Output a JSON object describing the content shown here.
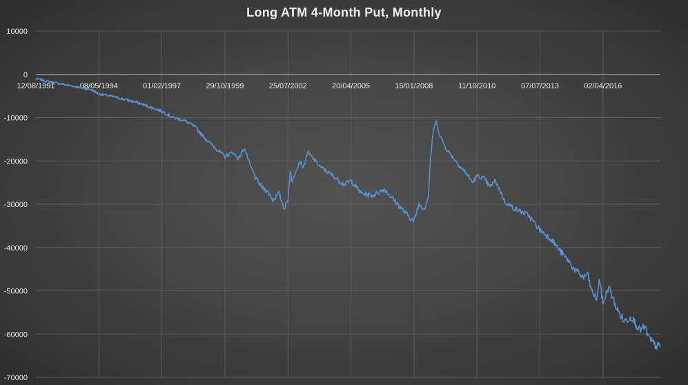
{
  "chart_data": {
    "type": "line",
    "title": "Long ATM 4-Month Put, Monthly",
    "xlabel": "",
    "ylabel": "",
    "ylim": [
      -70000,
      10000
    ],
    "y_ticks": [
      10000,
      0,
      -10000,
      -20000,
      -30000,
      -40000,
      -50000,
      -60000,
      -70000
    ],
    "y_tick_labels": [
      "10000",
      "0",
      "-10000",
      "-20000",
      "-30000",
      "-40000",
      "-50000",
      "-60000",
      "-70000"
    ],
    "x_tick_labels": [
      "12/08/1991",
      "08/05/1994",
      "01/02/1997",
      "29/10/1999",
      "25/07/2002",
      "20/04/2005",
      "15/01/2008",
      "11/10/2010",
      "07/07/2013",
      "02/04/2016"
    ],
    "xlim": [
      "12/08/1991",
      "30/09/2018"
    ],
    "grid": true,
    "legend": "none",
    "series_color": "#5b8fd0",
    "series": [
      {
        "x": [
          "12/08/1991",
          "01/01/1992",
          "01/01/1993",
          "01/01/1994",
          "08/05/1994",
          "01/01/1995",
          "01/01/1996",
          "01/02/1997",
          "01/08/1997",
          "01/01/1998",
          "01/07/1998",
          "01/10/1998",
          "01/01/1999",
          "01/06/1999",
          "29/10/1999",
          "01/03/2000",
          "01/06/2000",
          "01/09/2000",
          "01/12/2000",
          "01/03/2001",
          "01/06/2001",
          "01/09/2001",
          "01/12/2001",
          "01/03/2002",
          "01/06/2002",
          "25/07/2002",
          "01/09/2002",
          "01/10/2002",
          "01/12/2002",
          "01/02/2003",
          "01/04/2003",
          "01/06/2003",
          "01/01/2004",
          "01/06/2004",
          "01/01/2005",
          "20/04/2005",
          "01/10/2005",
          "01/04/2006",
          "01/10/2006",
          "01/02/2007",
          "01/06/2007",
          "01/09/2007",
          "15/01/2008",
          "01/04/2008",
          "01/07/2008",
          "01/09/2008",
          "01/10/2008",
          "01/11/2008",
          "01/12/2008",
          "01/01/2009",
          "01/03/2009",
          "01/06/2009",
          "01/01/2010",
          "01/05/2010",
          "01/08/2010",
          "11/10/2010",
          "01/02/2011",
          "01/05/2011",
          "01/08/2011",
          "01/10/2011",
          "01/01/2012",
          "01/06/2012",
          "01/01/2013",
          "07/07/2013",
          "01/01/2014",
          "01/06/2014",
          "01/10/2014",
          "01/01/2015",
          "01/06/2015",
          "01/08/2015",
          "01/10/2015",
          "01/01/2016",
          "01/02/2016",
          "02/04/2016",
          "01/07/2016",
          "01/11/2016",
          "01/03/2017",
          "01/07/2017",
          "01/11/2017",
          "01/02/2018",
          "01/04/2018",
          "01/07/2018",
          "30/09/2018"
        ],
        "y": [
          -1000,
          -1500,
          -2500,
          -3500,
          -4500,
          -5200,
          -6500,
          -8500,
          -10000,
          -10500,
          -12000,
          -13500,
          -15000,
          -17000,
          -19000,
          -18000,
          -19500,
          -17000,
          -21000,
          -24000,
          -26000,
          -27000,
          -29000,
          -27500,
          -31000,
          -29000,
          -22000,
          -25000,
          -22000,
          -20000,
          -21500,
          -18000,
          -21500,
          -23000,
          -25500,
          -24500,
          -27500,
          -28000,
          -26500,
          -28500,
          -30500,
          -32000,
          -34000,
          -30000,
          -31000,
          -28000,
          -20000,
          -15000,
          -12000,
          -11000,
          -14000,
          -17000,
          -21000,
          -23000,
          -25000,
          -23500,
          -24000,
          -26000,
          -24500,
          -26500,
          -29500,
          -31000,
          -32500,
          -36000,
          -38000,
          -41000,
          -43000,
          -45000,
          -47000,
          -46000,
          -50000,
          -52000,
          -47000,
          -53000,
          -49000,
          -54000,
          -57000,
          -56000,
          -59000,
          -58500,
          -61000,
          -62500,
          -63000
        ]
      }
    ]
  }
}
